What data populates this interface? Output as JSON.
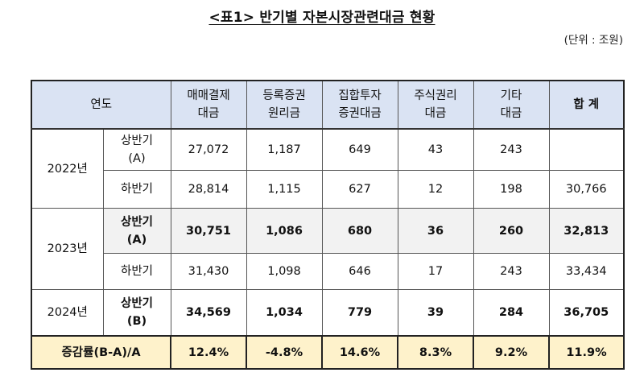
{
  "title": "<표1> 반기별 자본시장관련대금 현황",
  "unit": "(단위 : 조원)",
  "headers": {
    "year": "연도",
    "c1": "매매결제\n대금",
    "c2": "등록증권\n원리금",
    "c3": "집합투자\n증권대금",
    "c4": "주식권리\n대금",
    "c5": "기타\n대금",
    "c6": "합 계"
  },
  "rows": [
    {
      "year": "2022년",
      "half": "상반기\n(A)",
      "v": [
        "27,072",
        "1,187",
        "649",
        "43",
        "243",
        ""
      ]
    },
    {
      "year": "",
      "half": "하반기",
      "v": [
        "28,814",
        "1,115",
        "627",
        "12",
        "198",
        "30,766"
      ]
    },
    {
      "year": "2023년",
      "half": "상반기\n(A)",
      "v": [
        "30,751",
        "1,086",
        "680",
        "36",
        "260",
        "32,813"
      ]
    },
    {
      "year": "",
      "half": "하반기",
      "v": [
        "31,430",
        "1,098",
        "646",
        "17",
        "243",
        "33,434"
      ]
    },
    {
      "year": "2024년",
      "half": "상반기\n(B)",
      "v": [
        "34,569",
        "1,034",
        "779",
        "39",
        "284",
        "36,705"
      ]
    }
  ],
  "rate": {
    "label": "증감률(B-A)/A",
    "v": [
      "12.4%",
      "-4.8%",
      "14.6%",
      "8.3%",
      "9.2%",
      "11.9%"
    ]
  }
}
